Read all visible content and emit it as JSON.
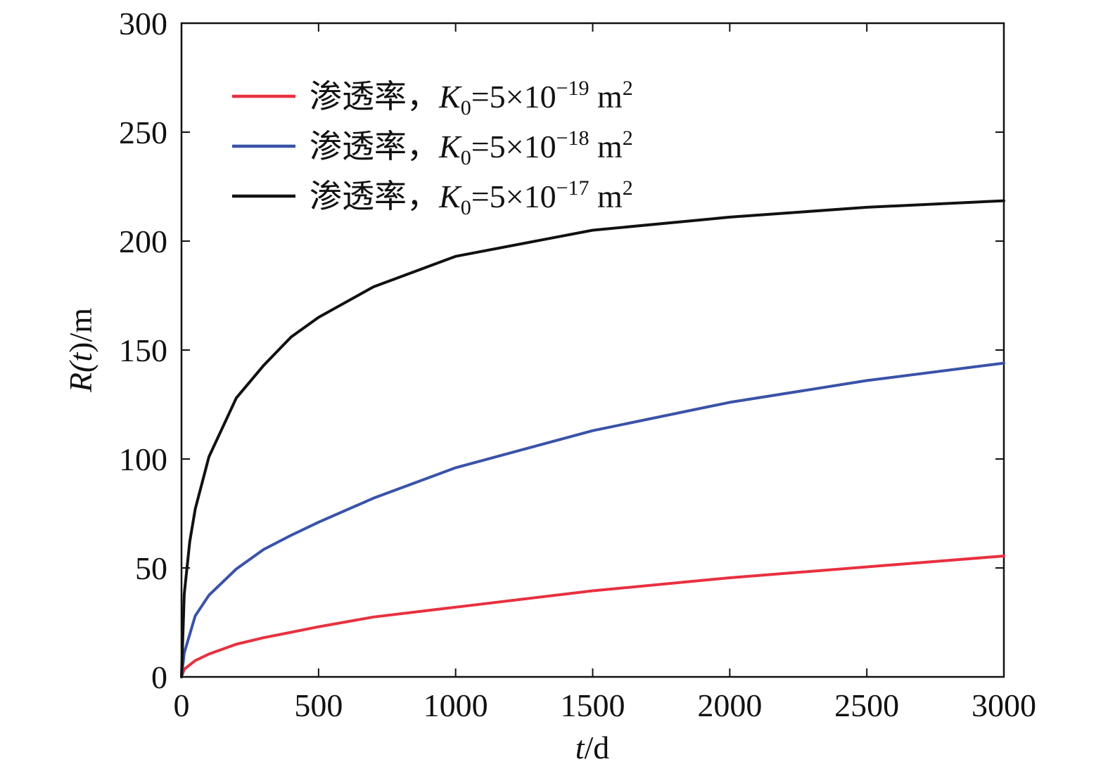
{
  "chart_data": {
    "type": "line",
    "xlabel": {
      "var": "t",
      "unit": "/d"
    },
    "ylabel": {
      "pre": "R(",
      "var": "t",
      "post": ")/m"
    },
    "xlim": [
      0,
      3000
    ],
    "ylim": [
      0,
      300
    ],
    "xticks": [
      "0",
      "500",
      "1000",
      "1500",
      "2000",
      "2500",
      "3000"
    ],
    "yticks": [
      "0",
      "50",
      "100",
      "150",
      "200",
      "250",
      "300"
    ],
    "grid": false,
    "legend_position": "top-left",
    "series": [
      {
        "name": "渗透率，K0=5×10−19 m2",
        "label_parts": {
          "prefix": "渗透率，",
          "k": "K",
          "k_sub": "0",
          "eq": "=5×10",
          "exp": "−19",
          "unit": " m",
          "unit_sup": "2"
        },
        "color": "#e8303f",
        "x": [
          0,
          10,
          50,
          100,
          200,
          300,
          400,
          500,
          700,
          1000,
          1500,
          2000,
          2500,
          3000
        ],
        "y": [
          0,
          3.5,
          7.5,
          10.5,
          15,
          18,
          20.5,
          23,
          27.5,
          32,
          39.5,
          45.5,
          50.5,
          55.5
        ]
      },
      {
        "name": "渗透率，K0=5×10−18 m2",
        "label_parts": {
          "prefix": "渗透率，",
          "k": "K",
          "k_sub": "0",
          "eq": "=5×10",
          "exp": "−18",
          "unit": " m",
          "unit_sup": "2"
        },
        "color": "#3a52a8",
        "x": [
          0,
          10,
          50,
          100,
          200,
          300,
          400,
          500,
          700,
          1000,
          1500,
          2000,
          2500,
          3000
        ],
        "y": [
          0,
          11,
          28,
          37.5,
          49.5,
          58.5,
          65,
          71,
          82,
          96,
          113,
          126,
          136,
          144
        ]
      },
      {
        "name": "渗透率，K0=5×10−17 m2",
        "label_parts": {
          "prefix": "渗透率，",
          "k": "K",
          "k_sub": "0",
          "eq": "=5×10",
          "exp": "−17",
          "unit": " m",
          "unit_sup": "2"
        },
        "color": "#111111",
        "x": [
          0,
          10,
          30,
          50,
          100,
          200,
          300,
          400,
          500,
          700,
          1000,
          1500,
          2000,
          2500,
          3000
        ],
        "y": [
          0,
          38,
          62,
          77,
          101,
          128,
          143,
          156,
          165,
          179,
          193,
          205,
          211,
          215.5,
          218.5
        ]
      }
    ]
  }
}
